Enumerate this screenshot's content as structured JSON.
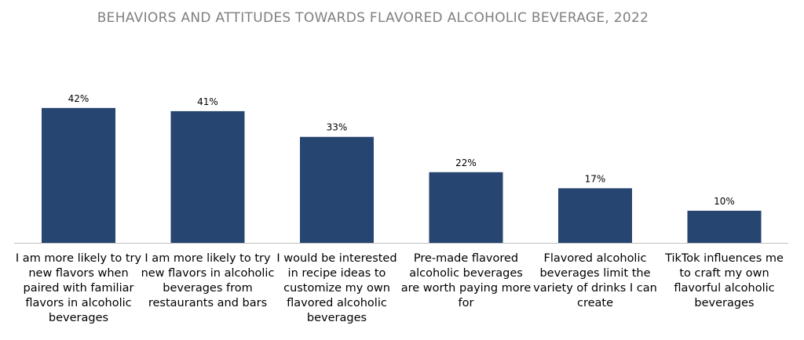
{
  "chart_data": {
    "type": "bar",
    "title": "BEHAVIORS AND ATTITUDES TOWARDS FLAVORED ALCOHOLIC BEVERAGE, 2022",
    "categories": [
      "I am more likely to try new flavors when paired with familiar flavors in alcoholic beverages",
      "I am more likely to try new flavors in alcoholic beverages from restaurants and bars",
      "I would be interested in recipe ideas to customize my own flavored alcoholic beverages",
      "Pre-made flavored alcoholic beverages are worth paying more for",
      "Flavored alcoholic beverages limit the variety of drinks I can create",
      "TikTok influences me to craft my own flavorful alcoholic beverages"
    ],
    "values": [
      42,
      41,
      33,
      22,
      17,
      10
    ],
    "data_labels": [
      "42%",
      "41%",
      "33%",
      "22%",
      "17%",
      "10%"
    ],
    "ylim": [
      0,
      50
    ],
    "grid": false,
    "bar_color": "#264570",
    "axis_color": "#bfbfbf"
  }
}
